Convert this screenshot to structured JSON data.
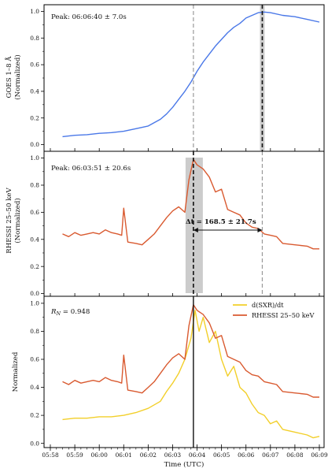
{
  "chart_data": [
    {
      "type": "line",
      "ylabel_lines": [
        "GOES 1–8 Å",
        "(Normalized)"
      ],
      "ylim": [
        -0.05,
        1.05
      ],
      "yticks": [
        "0.0",
        "0.2",
        "0.4",
        "0.6",
        "0.8",
        "1.0"
      ],
      "annotation": "Peak: 06:06:40 ± 7.0s",
      "peak_time": "06:06:40",
      "series": [
        {
          "color": "#4a78e8",
          "x": [
            "05:58:30",
            "05:59:00",
            "05:59:30",
            "06:00:00",
            "06:00:30",
            "06:01:00",
            "06:01:30",
            "06:02:00",
            "06:02:30",
            "06:02:45",
            "06:03:00",
            "06:03:15",
            "06:03:30",
            "06:03:45",
            "06:04:00",
            "06:04:15",
            "06:04:30",
            "06:04:45",
            "06:05:00",
            "06:05:15",
            "06:05:30",
            "06:05:45",
            "06:06:00",
            "06:06:15",
            "06:06:30",
            "06:06:45",
            "06:07:00",
            "06:07:30",
            "06:08:00",
            "06:08:30",
            "06:09:00"
          ],
          "y": [
            0.06,
            0.07,
            0.075,
            0.085,
            0.09,
            0.1,
            0.12,
            0.14,
            0.19,
            0.23,
            0.28,
            0.34,
            0.4,
            0.47,
            0.55,
            0.62,
            0.68,
            0.74,
            0.79,
            0.84,
            0.88,
            0.91,
            0.95,
            0.97,
            0.99,
            0.995,
            0.99,
            0.97,
            0.96,
            0.94,
            0.92
          ]
        }
      ]
    },
    {
      "type": "line",
      "ylabel_lines": [
        "RHESSI 25–50 keV",
        "(Normalized)"
      ],
      "ylim": [
        -0.02,
        1.05
      ],
      "yticks": [
        "0.0",
        "0.2",
        "0.4",
        "0.6",
        "0.8",
        "1.0"
      ],
      "annotation": "Peak: 06:03:51 ± 20.6s",
      "delta_label": "Δt = 168.5 ± 21.7s",
      "peak_time": "06:03:51",
      "series": [
        {
          "color": "#d95a30",
          "x": [
            "05:58:30",
            "05:58:45",
            "05:59:00",
            "05:59:15",
            "05:59:30",
            "05:59:45",
            "06:00:00",
            "06:00:15",
            "06:00:30",
            "06:00:45",
            "06:00:55",
            "06:01:00",
            "06:01:10",
            "06:01:30",
            "06:01:45",
            "06:02:00",
            "06:02:15",
            "06:02:30",
            "06:02:45",
            "06:03:00",
            "06:03:15",
            "06:03:30",
            "06:03:40",
            "06:03:51",
            "06:04:00",
            "06:04:15",
            "06:04:30",
            "06:04:45",
            "06:05:00",
            "06:05:15",
            "06:05:30",
            "06:05:45",
            "06:06:00",
            "06:06:15",
            "06:06:30",
            "06:06:45",
            "06:07:00",
            "06:07:15",
            "06:07:30",
            "06:08:00",
            "06:08:30",
            "06:08:45",
            "06:09:00"
          ],
          "y": [
            0.44,
            0.42,
            0.45,
            0.43,
            0.44,
            0.45,
            0.44,
            0.47,
            0.45,
            0.44,
            0.43,
            0.63,
            0.38,
            0.37,
            0.36,
            0.4,
            0.44,
            0.5,
            0.56,
            0.61,
            0.64,
            0.6,
            0.84,
            0.99,
            0.95,
            0.92,
            0.86,
            0.75,
            0.77,
            0.62,
            0.6,
            0.58,
            0.52,
            0.49,
            0.48,
            0.44,
            0.43,
            0.42,
            0.37,
            0.36,
            0.35,
            0.33,
            0.33
          ]
        }
      ]
    },
    {
      "type": "line",
      "ylabel": "Normalized",
      "ylim": [
        -0.03,
        1.05
      ],
      "yticks": [
        "0.0",
        "0.2",
        "0.4",
        "0.6",
        "0.8",
        "1.0"
      ],
      "annotation_prefix": "R",
      "annotation_sub": "N",
      "annotation_value": " = 0.948",
      "legend": "top-right",
      "xlabel": "Time (UTC)",
      "xticks": [
        "05:58",
        "05:59",
        "06:00",
        "06:01",
        "06:02",
        "06:03",
        "06:04",
        "06:05",
        "06:06",
        "06:07",
        "06:08",
        "06:09"
      ],
      "series": [
        {
          "name": "d(SXR)/dt",
          "color": "#f2cf2a",
          "x": [
            "05:58:30",
            "05:59:00",
            "05:59:30",
            "06:00:00",
            "06:00:30",
            "06:01:00",
            "06:01:30",
            "06:02:00",
            "06:02:30",
            "06:02:45",
            "06:03:00",
            "06:03:15",
            "06:03:30",
            "06:03:45",
            "06:03:55",
            "06:04:05",
            "06:04:15",
            "06:04:30",
            "06:04:45",
            "06:05:00",
            "06:05:15",
            "06:05:30",
            "06:05:45",
            "06:06:00",
            "06:06:15",
            "06:06:30",
            "06:06:45",
            "06:07:00",
            "06:07:15",
            "06:07:30",
            "06:08:00",
            "06:08:30",
            "06:08:45",
            "06:09:00"
          ],
          "y": [
            0.17,
            0.18,
            0.18,
            0.19,
            0.19,
            0.2,
            0.22,
            0.25,
            0.3,
            0.37,
            0.43,
            0.5,
            0.6,
            0.75,
            0.95,
            0.8,
            0.9,
            0.72,
            0.8,
            0.6,
            0.48,
            0.55,
            0.4,
            0.36,
            0.28,
            0.22,
            0.2,
            0.14,
            0.16,
            0.1,
            0.08,
            0.06,
            0.04,
            0.05
          ]
        },
        {
          "name": "RHESSI 25–50 keV",
          "color": "#d95a30",
          "x": [
            "05:58:30",
            "05:58:45",
            "05:59:00",
            "05:59:15",
            "05:59:30",
            "05:59:45",
            "06:00:00",
            "06:00:15",
            "06:00:30",
            "06:00:45",
            "06:00:55",
            "06:01:00",
            "06:01:10",
            "06:01:30",
            "06:01:45",
            "06:02:00",
            "06:02:15",
            "06:02:30",
            "06:02:45",
            "06:03:00",
            "06:03:15",
            "06:03:30",
            "06:03:40",
            "06:03:51",
            "06:04:00",
            "06:04:15",
            "06:04:30",
            "06:04:45",
            "06:05:00",
            "06:05:15",
            "06:05:30",
            "06:05:45",
            "06:06:00",
            "06:06:15",
            "06:06:30",
            "06:06:45",
            "06:07:00",
            "06:07:15",
            "06:07:30",
            "06:08:00",
            "06:08:30",
            "06:08:45",
            "06:09:00"
          ],
          "y": [
            0.44,
            0.42,
            0.45,
            0.43,
            0.44,
            0.45,
            0.44,
            0.47,
            0.45,
            0.44,
            0.43,
            0.63,
            0.38,
            0.37,
            0.36,
            0.4,
            0.44,
            0.5,
            0.56,
            0.61,
            0.64,
            0.6,
            0.84,
            0.99,
            0.95,
            0.92,
            0.86,
            0.75,
            0.77,
            0.62,
            0.6,
            0.58,
            0.52,
            0.49,
            0.48,
            0.44,
            0.43,
            0.42,
            0.37,
            0.36,
            0.35,
            0.33,
            0.33
          ]
        }
      ]
    }
  ]
}
